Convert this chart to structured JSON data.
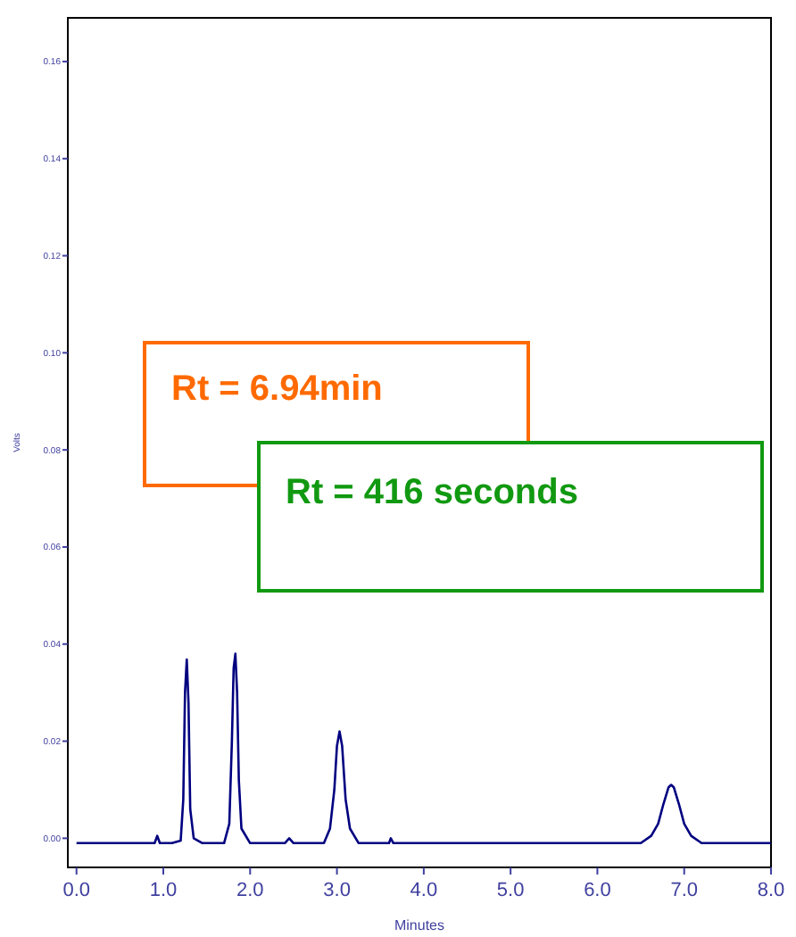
{
  "chart_data": {
    "type": "line",
    "xlabel": "Minutes",
    "ylabel": "Volts",
    "x": [
      0,
      0.5,
      0.9,
      0.93,
      0.96,
      1.1,
      1.2,
      1.23,
      1.25,
      1.27,
      1.29,
      1.31,
      1.35,
      1.45,
      1.7,
      1.76,
      1.79,
      1.81,
      1.83,
      1.85,
      1.87,
      1.9,
      2.0,
      2.4,
      2.45,
      2.5,
      2.85,
      2.92,
      2.97,
      3.0,
      3.03,
      3.06,
      3.1,
      3.15,
      3.25,
      3.6,
      3.62,
      3.65,
      4.5,
      5.5,
      6.5,
      6.62,
      6.7,
      6.76,
      6.82,
      6.85,
      6.88,
      6.94,
      7.0,
      7.08,
      7.2,
      7.5,
      8.0
    ],
    "series": [
      {
        "color": "#000080",
        "values": [
          -0.001,
          -0.001,
          -0.001,
          0.0005,
          -0.001,
          -0.001,
          -0.0005,
          0.008,
          0.03,
          0.0368,
          0.028,
          0.006,
          0.0,
          -0.001,
          -0.001,
          0.003,
          0.02,
          0.035,
          0.038,
          0.03,
          0.012,
          0.002,
          -0.001,
          -0.001,
          0.0,
          -0.001,
          -0.001,
          0.002,
          0.01,
          0.019,
          0.022,
          0.019,
          0.008,
          0.002,
          -0.001,
          -0.001,
          0.0,
          -0.001,
          -0.001,
          -0.001,
          -0.001,
          0.0005,
          0.003,
          0.007,
          0.0105,
          0.011,
          0.0105,
          0.007,
          0.003,
          0.0005,
          -0.001,
          -0.001,
          -0.001
        ]
      }
    ],
    "xlim": [
      -0.1,
      8.0
    ],
    "xticks": [
      {
        "value": 0,
        "label": "0.0"
      },
      {
        "value": 1,
        "label": "1.0"
      },
      {
        "value": 2,
        "label": "2.0"
      },
      {
        "value": 3,
        "label": "3.0"
      },
      {
        "value": 4,
        "label": "4.0"
      },
      {
        "value": 5,
        "label": "5.0"
      },
      {
        "value": 6,
        "label": "6.0"
      },
      {
        "value": 7,
        "label": "7.0"
      },
      {
        "value": 8,
        "label": "8.0"
      }
    ],
    "ylim": [
      -0.006,
      0.169
    ],
    "yticks": [
      {
        "value": 0,
        "label": "0.00"
      },
      {
        "value": 0.02,
        "label": "0.02"
      },
      {
        "value": 0.04,
        "label": "0.04"
      },
      {
        "value": 0.06,
        "label": "0.06"
      },
      {
        "value": 0.08,
        "label": "0.08"
      },
      {
        "value": 0.1,
        "label": "0.10"
      },
      {
        "value": 0.12,
        "label": "0.12"
      },
      {
        "value": 0.14,
        "label": "0.14"
      },
      {
        "value": 0.16,
        "label": "0.16"
      }
    ],
    "grid": false,
    "marker": "none",
    "line_style": "solid",
    "annotations": [
      "Rt = 6.94min",
      "Rt = 416 seconds"
    ]
  }
}
